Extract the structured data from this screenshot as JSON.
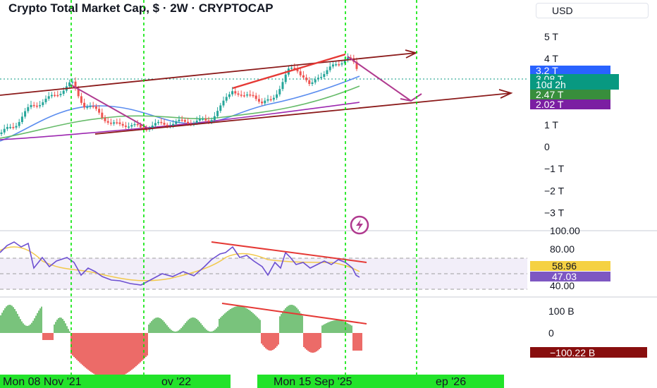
{
  "header": {
    "title": "Crypto Total Market Cap, $ · 2W · CRYPTOCAP",
    "currency": "USD"
  },
  "price_axis": {
    "ticks": [
      {
        "label": "5 T",
        "value": 5
      },
      {
        "label": "4 T",
        "value": 4
      },
      {
        "label": "1 T",
        "value": 1
      },
      {
        "label": "0",
        "value": 0
      },
      {
        "label": "−1 T",
        "value": -1
      },
      {
        "label": "−2 T",
        "value": -2
      },
      {
        "label": "−3 T",
        "value": -3
      }
    ],
    "badges": [
      {
        "label": "3.2 T",
        "value": 3.2,
        "color": "#2962ff"
      },
      {
        "label": "3.08 T",
        "value": 3.08,
        "color": "#089981"
      },
      {
        "label": "10d 2h",
        "value": 2.97,
        "color": "#089981"
      },
      {
        "label": "2.47 T",
        "value": 2.47,
        "color": "#388e3c"
      },
      {
        "label": "2.02 T",
        "value": 2.02,
        "color": "#7b1fa2"
      }
    ]
  },
  "rsi_axis": {
    "ticks": [
      {
        "label": "100.00",
        "value": 100
      },
      {
        "label": "80.00",
        "value": 80
      },
      {
        "label": "40.00",
        "value": 40
      }
    ],
    "badges": [
      {
        "label": "58.96",
        "value": 58.96,
        "color": "#f5d142",
        "text_color": "#131722"
      },
      {
        "label": "47.03",
        "value": 47.03,
        "color": "#7e57c2",
        "text_color": "#ffffff"
      }
    ]
  },
  "macd_axis": {
    "ticks": [
      {
        "label": "100 B",
        "value": 100
      },
      {
        "label": "0",
        "value": 0
      }
    ],
    "badges": [
      {
        "label": "−100.22 B",
        "value": -100.22,
        "color": "#880e0e"
      }
    ]
  },
  "time_axis": {
    "labels": [
      {
        "label": "Mon 08 Nov '21",
        "date": "2021-11-08"
      },
      {
        "label": "ov '22",
        "date": "2022-11"
      },
      {
        "label": "Mon 15 Sep '25",
        "date": "2025-09-15"
      },
      {
        "label": "ep '26",
        "date": "2026-09"
      }
    ]
  },
  "chart_data": {
    "type": "candlestick",
    "symbol": "CRYPTOCAP",
    "interval": "2W",
    "y_unit": "T USD",
    "price_close_approx": [
      {
        "date": "2021-01",
        "value": 0.9
      },
      {
        "date": "2021-05",
        "value": 1.6
      },
      {
        "date": "2021-11",
        "value": 2.95
      },
      {
        "date": "2022-06",
        "value": 0.95
      },
      {
        "date": "2022-11",
        "value": 0.8
      },
      {
        "date": "2023-06",
        "value": 1.15
      },
      {
        "date": "2024-03",
        "value": 2.65
      },
      {
        "date": "2024-09",
        "value": 2.1
      },
      {
        "date": "2024-12",
        "value": 3.6
      },
      {
        "date": "2025-04",
        "value": 2.6
      },
      {
        "date": "2025-09",
        "value": 4.25
      },
      {
        "date": "2025-11",
        "value": 3.08
      }
    ],
    "moving_averages": [
      {
        "value": 3.2,
        "color": "#2962ff"
      },
      {
        "value": 2.47,
        "color": "#388e3c"
      },
      {
        "value": 2.02,
        "color": "#7b1fa2"
      }
    ],
    "rsi": {
      "value": 47.03,
      "signal": 58.96,
      "band": [
        40,
        70
      ]
    },
    "macd_histogram_last": -100.22
  }
}
